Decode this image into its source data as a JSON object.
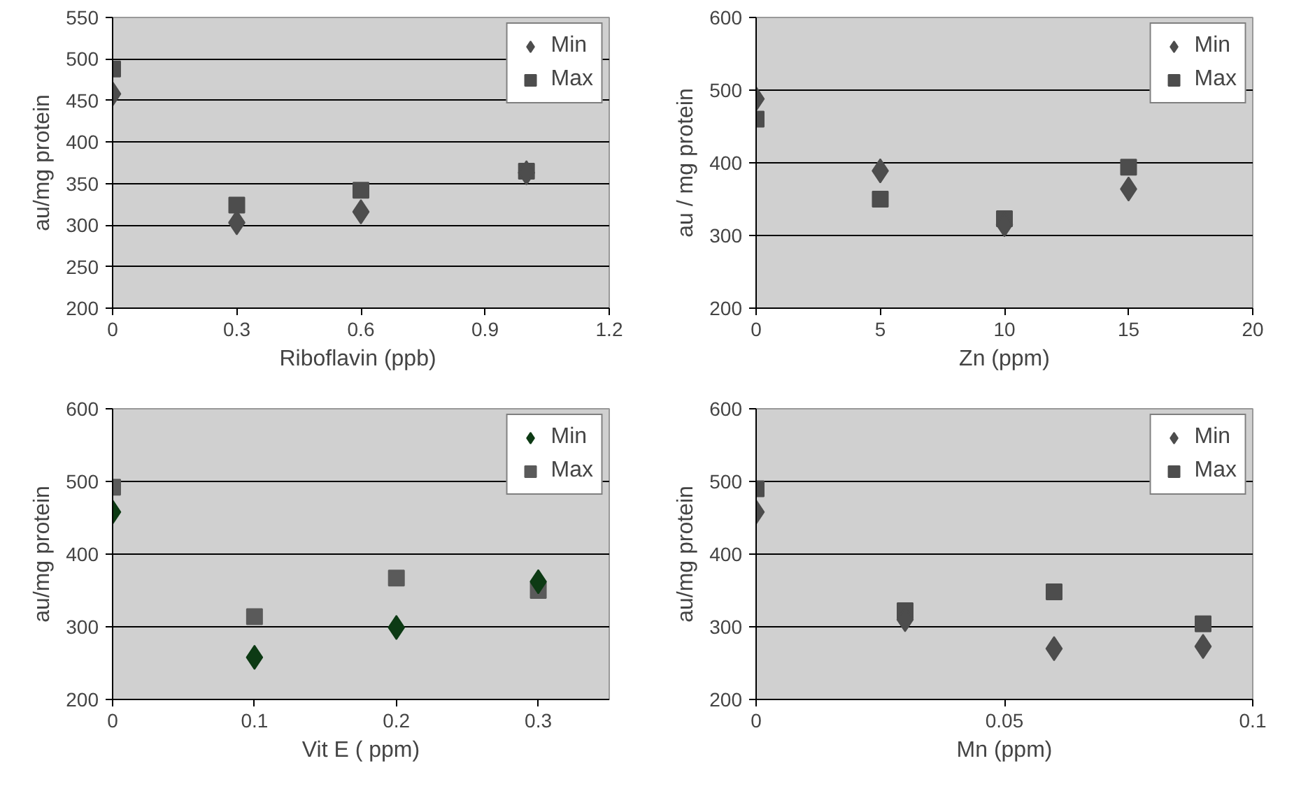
{
  "chart_data": [
    {
      "type": "scatter",
      "xlabel": "Riboflavin  (ppb)",
      "ylabel": "au/mg protein",
      "xlim": [
        0,
        1.2
      ],
      "xticks": [
        0,
        0.3,
        0.6,
        0.9,
        1.2
      ],
      "ylim": [
        200,
        550
      ],
      "yticks": [
        200,
        250,
        300,
        350,
        400,
        450,
        500,
        550
      ],
      "grid": "y",
      "legend": "top right",
      "series": [
        {
          "name": "Min",
          "color": "#4d4d4d",
          "marker": "diamond",
          "x": [
            0,
            0.3,
            0.6,
            1.0
          ],
          "values": [
            458,
            303,
            316,
            363
          ]
        },
        {
          "name": "Max",
          "color": "#4d4d4d",
          "marker": "square",
          "x": [
            0,
            0.3,
            0.6,
            1.0
          ],
          "values": [
            488,
            324,
            342,
            365
          ]
        }
      ]
    },
    {
      "type": "scatter",
      "xlabel": "Zn (ppm)",
      "ylabel": "au / mg protein",
      "xlim": [
        0,
        20
      ],
      "xticks": [
        0,
        5,
        10,
        15,
        20
      ],
      "ylim": [
        200,
        600
      ],
      "yticks": [
        200,
        300,
        400,
        500,
        600
      ],
      "grid": "y",
      "legend": "top right",
      "series": [
        {
          "name": "Min",
          "color": "#4d4d4d",
          "marker": "diamond",
          "x": [
            0,
            5,
            10,
            15
          ],
          "values": [
            488,
            389,
            315,
            364
          ]
        },
        {
          "name": "Max",
          "color": "#4d4d4d",
          "marker": "square",
          "x": [
            0,
            5,
            10,
            15
          ],
          "values": [
            460,
            350,
            323,
            394
          ]
        }
      ]
    },
    {
      "type": "scatter",
      "xlabel": "Vit E ( ppm)",
      "ylabel": "au/mg protein",
      "xlim": [
        0,
        0.35
      ],
      "xticks": [
        0,
        0.1,
        0.2,
        0.3
      ],
      "ylim": [
        200,
        600
      ],
      "yticks": [
        200,
        300,
        400,
        500,
        600
      ],
      "grid": "y",
      "legend": "top right",
      "series": [
        {
          "name": "Min",
          "color": "#0d3a14",
          "marker": "diamond",
          "x": [
            0,
            0.1,
            0.2,
            0.3
          ],
          "values": [
            458,
            258,
            299,
            362
          ]
        },
        {
          "name": "Max",
          "color": "#5a5a5a",
          "marker": "square",
          "x": [
            0,
            0.1,
            0.2,
            0.3
          ],
          "values": [
            492,
            314,
            367,
            350
          ]
        }
      ]
    },
    {
      "type": "scatter",
      "xlabel": "Mn (ppm)",
      "ylabel": "au/mg protein",
      "xlim": [
        0,
        0.1
      ],
      "xticks": [
        0,
        0.05,
        0.1
      ],
      "ylim": [
        200,
        600
      ],
      "yticks": [
        200,
        300,
        400,
        500,
        600
      ],
      "grid": "y",
      "legend": "top right",
      "series": [
        {
          "name": "Min",
          "color": "#4d4d4d",
          "marker": "diamond",
          "x": [
            0,
            0.03,
            0.06,
            0.09
          ],
          "values": [
            458,
            310,
            270,
            273
          ]
        },
        {
          "name": "Max",
          "color": "#4d4d4d",
          "marker": "square",
          "x": [
            0,
            0.03,
            0.06,
            0.09
          ],
          "values": [
            490,
            322,
            348,
            304
          ]
        }
      ]
    }
  ]
}
